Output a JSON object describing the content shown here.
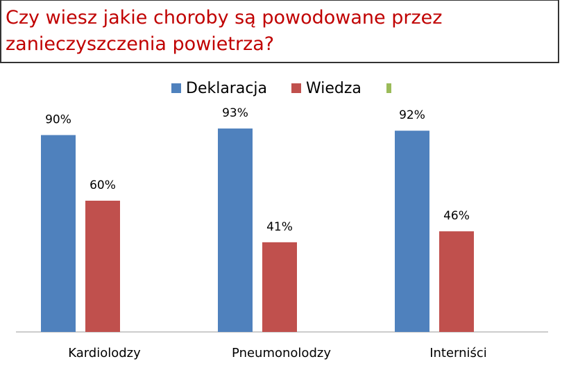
{
  "chart_data": {
    "type": "bar",
    "title": "Czy wiesz jakie choroby są powodowane przez zanieczyszczenia powietrza?",
    "categories": [
      "Kardiolodzy",
      "Pneumonolodzy",
      "Interniści"
    ],
    "series": [
      {
        "name": "Deklaracja",
        "color": "#4f81bd",
        "values": [
          90,
          93,
          92
        ],
        "value_labels": [
          "90%",
          "93%",
          "92%"
        ]
      },
      {
        "name": "Wiedza",
        "color": "#c0504d",
        "values": [
          60,
          41,
          46
        ],
        "value_labels": [
          "60%",
          "41%",
          "46%"
        ]
      },
      {
        "name": null,
        "color": "#9bbb59",
        "values": [
          null,
          null,
          null
        ]
      }
    ],
    "legend": "top"
  }
}
